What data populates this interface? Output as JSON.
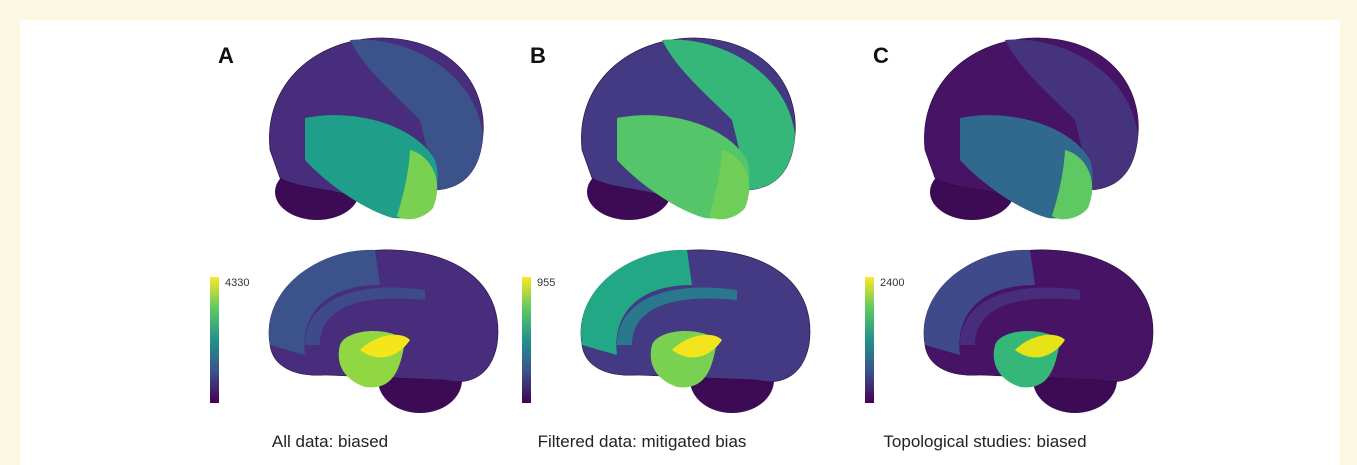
{
  "panels": [
    {
      "label": "A",
      "colorbar_max": 4330,
      "caption": "All data: biased"
    },
    {
      "label": "B",
      "colorbar_max": 955,
      "caption": "Filtered data: mitigated bias"
    },
    {
      "label": "C",
      "colorbar_max": 2400,
      "caption": "Topological studies: biased"
    }
  ]
}
